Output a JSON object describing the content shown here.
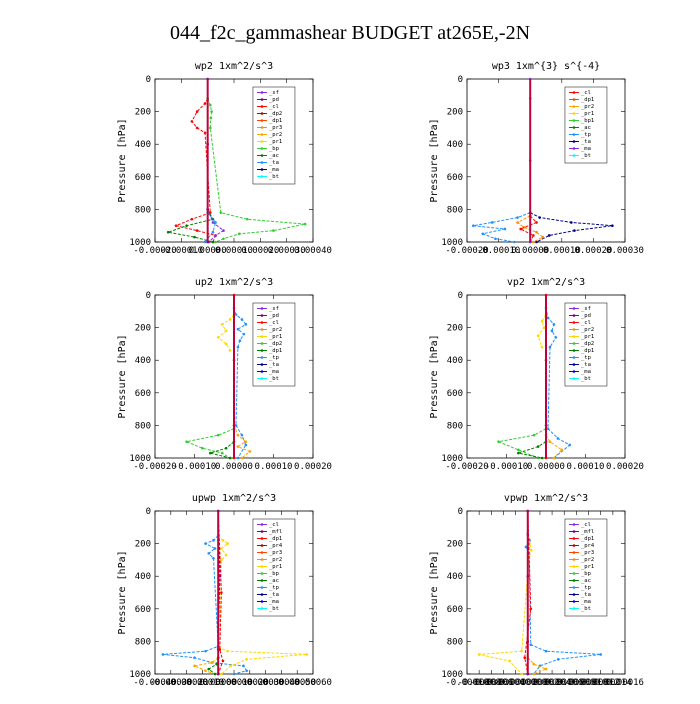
{
  "title": "044_f2c_gammashear  BUDGET at265E,-2N",
  "chart_data": [
    {
      "type": "line",
      "title": "wp2  1xm^2/s^3",
      "ylabel": "Pressure [hPa]",
      "ylim": [
        1000,
        0
      ],
      "yticks": [
        "0",
        "200",
        "400",
        "600",
        "800",
        "1000"
      ],
      "xlim": [
        -0.0002,
        0.0004
      ],
      "xticks": [
        "-0.00020",
        "-0.00010",
        "0.00000",
        "0.00010",
        "0.00020",
        "0.00030",
        "0.00040"
      ],
      "legend": [
        "_sf",
        "_pd",
        "_cl",
        "_dp2",
        "_dp1",
        "_pr3",
        "_pr2",
        "_pr1",
        "_bp",
        "_ac",
        "_ta",
        "_ma",
        "_bt"
      ],
      "legend_colors": [
        "#8a2be2",
        "#800080",
        "#ff0000",
        "#c00000",
        "#ff4500",
        "#ff8c00",
        "#ffa500",
        "#ffd700",
        "#32cd32",
        "#008000",
        "#1e90ff",
        "#00008b",
        "#00ffff"
      ],
      "series": [
        {
          "color": "#ff0000",
          "x": [
            0,
            -1e-05,
            -4e-05,
            -6e-05,
            -4e-05,
            -1e-05,
            1e-05,
            -6e-05,
            -0.00012,
            -4e-05,
            3e-05,
            2e-05
          ],
          "p": [
            120,
            150,
            200,
            260,
            300,
            330,
            820,
            860,
            900,
            930,
            960,
            1000
          ]
        },
        {
          "color": "#32cd32",
          "x": [
            0,
            1e-05,
            1.5e-05,
            1.2e-05,
            1e-05,
            5e-05,
            0.00015,
            0.00037,
            0.00025,
            0.00012,
            6e-05,
            3e-05
          ],
          "p": [
            120,
            160,
            200,
            240,
            300,
            820,
            860,
            890,
            930,
            950,
            980,
            1000
          ]
        },
        {
          "color": "#008000",
          "x": [
            0,
            2e-05,
            -8e-05,
            -0.00015,
            -5e-05,
            2e-05
          ],
          "p": [
            800,
            860,
            900,
            940,
            970,
            1000
          ]
        },
        {
          "color": "#8a2be2",
          "x": [
            0,
            2e-05,
            6e-05,
            3e-05,
            5e-06
          ],
          "p": [
            800,
            880,
            930,
            960,
            1000
          ]
        },
        {
          "color": "#1e90ff",
          "x": [
            0,
            3e-05,
            2e-05,
            -1e-05
          ],
          "p": [
            820,
            880,
            940,
            1000
          ]
        },
        {
          "color": "#800080",
          "x": [
            0,
            0,
            0,
            0
          ],
          "p": [
            0,
            400,
            800,
            1000
          ]
        }
      ]
    },
    {
      "type": "line",
      "title": "wp3  1xm^{3} s^{-4}",
      "ylabel": "Pressure [hPa]",
      "ylim": [
        1000,
        0
      ],
      "yticks": [
        "0",
        "200",
        "400",
        "600",
        "800",
        "1000"
      ],
      "xlim": [
        -0.0002,
        0.0003
      ],
      "xticks": [
        "-0.00020",
        "-0.00010",
        "0.00000",
        "0.00010",
        "0.00020",
        "0.00030"
      ],
      "legend": [
        "_cl",
        "_dp1",
        "_pr2",
        "_pr1",
        "_bp1",
        "_ac",
        "_tp",
        "_ta",
        "_ma",
        "_bt"
      ],
      "legend_colors": [
        "#ff0000",
        "#ff4500",
        "#ffa500",
        "#ffd700",
        "#32cd32",
        "#008000",
        "#1e90ff",
        "#00008b",
        "#8a2be2",
        "#00ffff"
      ],
      "series": [
        {
          "color": "#1e90ff",
          "x": [
            0,
            -4e-05,
            -0.00012,
            -0.00018,
            -8e-05,
            -0.00015,
            -0.00011,
            -5e-05
          ],
          "p": [
            820,
            850,
            880,
            900,
            920,
            950,
            980,
            1000
          ]
        },
        {
          "color": "#00008b",
          "x": [
            0,
            3e-05,
            0.00013,
            0.00026,
            0.00014,
            6e-05,
            2e-05
          ],
          "p": [
            820,
            850,
            880,
            900,
            930,
            960,
            1000
          ]
        },
        {
          "color": "#ff8c00",
          "x": [
            0,
            -4e-05,
            -2e-05,
            2e-05,
            4e-05,
            1e-05
          ],
          "p": [
            840,
            880,
            910,
            940,
            970,
            1000
          ]
        },
        {
          "color": "#ff0000",
          "x": [
            0,
            2e-05,
            -3e-05,
            1e-05,
            0
          ],
          "p": [
            840,
            880,
            920,
            960,
            1000
          ]
        },
        {
          "color": "#8a2be2",
          "x": [
            0,
            0,
            0,
            0
          ],
          "p": [
            0,
            120,
            500,
            1000
          ]
        }
      ]
    },
    {
      "type": "line",
      "title": "up2  1xm^2/s^3",
      "ylabel": "Pressure [hPa]",
      "ylim": [
        1000,
        0
      ],
      "yticks": [
        "0",
        "200",
        "400",
        "600",
        "800",
        "1000"
      ],
      "xlim": [
        -0.0002,
        0.0002
      ],
      "xticks": [
        "-0.00020",
        "-0.00010",
        "0.00000",
        "0.00010",
        "0.00020"
      ],
      "legend": [
        "_sf",
        "_pd",
        "_cl",
        "_pr2",
        "_pr1",
        "_dp2",
        "_dp1",
        "_tp",
        "_ta",
        "_ma",
        "_bt"
      ],
      "legend_colors": [
        "#8a2be2",
        "#800080",
        "#ff0000",
        "#ff8c00",
        "#ffd700",
        "#32cd32",
        "#008000",
        "#1e90ff",
        "#00008b",
        "#0000ff",
        "#00ffff"
      ],
      "series": [
        {
          "color": "#1e90ff",
          "x": [
            0,
            5e-06,
            2e-05,
            3e-05,
            1e-05,
            2.5e-05,
            1.5e-05,
            1e-05,
            5e-06,
            2e-05,
            3e-05,
            1e-05
          ],
          "p": [
            80,
            120,
            150,
            180,
            210,
            240,
            280,
            320,
            800,
            860,
            920,
            1000
          ]
        },
        {
          "color": "#ffd700",
          "x": [
            0,
            -1e-05,
            -3e-05,
            -2e-05,
            -4e-05,
            -2e-05,
            -1e-05
          ],
          "p": [
            120,
            150,
            180,
            220,
            260,
            300,
            340
          ]
        },
        {
          "color": "#ffa500",
          "x": [
            0,
            1e-05,
            3e-05,
            1e-05,
            4e-05,
            2e-05
          ],
          "p": [
            800,
            860,
            900,
            930,
            960,
            1000
          ]
        },
        {
          "color": "#32cd32",
          "x": [
            0,
            -4e-05,
            -0.00012,
            -8e-05,
            -3e-05,
            -1e-05
          ],
          "p": [
            820,
            860,
            900,
            940,
            970,
            1000
          ]
        },
        {
          "color": "#008000",
          "x": [
            0,
            -2e-05,
            -6e-05,
            -1e-05
          ],
          "p": [
            900,
            940,
            970,
            1000
          ]
        },
        {
          "color": "#ff0000",
          "x": [
            0,
            0,
            0,
            0
          ],
          "p": [
            0,
            400,
            800,
            1000
          ]
        }
      ]
    },
    {
      "type": "line",
      "title": "vp2  1xm^2/s^3",
      "ylabel": "Pressure [hPa]",
      "ylim": [
        1000,
        0
      ],
      "yticks": [
        "0",
        "200",
        "400",
        "600",
        "800",
        "1000"
      ],
      "xlim": [
        -0.0002,
        0.0002
      ],
      "xticks": [
        "-0.00020",
        "-0.00010",
        "0.00000",
        "0.00010",
        "0.00020"
      ],
      "legend": [
        "_sf",
        "_pd",
        "_cl",
        "_pr2",
        "_pr1",
        "_dp2",
        "_dp1",
        "_tp",
        "_ta",
        "_ma",
        "_bt"
      ],
      "legend_colors": [
        "#8a2be2",
        "#800080",
        "#ff0000",
        "#ff8c00",
        "#ffd700",
        "#32cd32",
        "#008000",
        "#1e90ff",
        "#00008b",
        "#0000ff",
        "#00ffff"
      ],
      "series": [
        {
          "color": "#1e90ff",
          "x": [
            0,
            5e-06,
            2e-05,
            1.5e-05,
            2.5e-05,
            1e-05,
            5e-06,
            3e-05,
            6e-05,
            2e-05
          ],
          "p": [
            80,
            140,
            180,
            220,
            260,
            320,
            820,
            880,
            920,
            1000
          ]
        },
        {
          "color": "#ffd700",
          "x": [
            0,
            -1e-05,
            -5e-06,
            -2e-05,
            -1e-05
          ],
          "p": [
            120,
            160,
            200,
            250,
            320
          ]
        },
        {
          "color": "#32cd32",
          "x": [
            0,
            -3e-05,
            -0.00012,
            -7e-05,
            -2e-05
          ],
          "p": [
            820,
            860,
            900,
            950,
            1000
          ]
        },
        {
          "color": "#008000",
          "x": [
            0,
            -2e-05,
            -7e-05,
            -1e-05
          ],
          "p": [
            900,
            930,
            970,
            1000
          ]
        },
        {
          "color": "#ffa500",
          "x": [
            0,
            1e-05,
            4e-05,
            2e-05
          ],
          "p": [
            860,
            900,
            950,
            1000
          ]
        },
        {
          "color": "#ff0000",
          "x": [
            0,
            0,
            0,
            0
          ],
          "p": [
            0,
            400,
            800,
            1000
          ]
        }
      ]
    },
    {
      "type": "line",
      "title": "upwp  1xm^2/s^3",
      "ylabel": "Pressure [hPa]",
      "ylim": [
        1000,
        0
      ],
      "yticks": [
        "0",
        "200",
        "400",
        "600",
        "800",
        "1000"
      ],
      "xlim": [
        -0.0004,
        0.0006
      ],
      "xticks": [
        "-0.00040",
        "-0.00030",
        "-0.00020",
        "-0.00010",
        "0.00000",
        "0.00010",
        "0.00020",
        "0.00030",
        "0.00040",
        "0.00050",
        "0.00060"
      ],
      "legend": [
        "_cl",
        "_mfl",
        "_dp1",
        "_pr4",
        "_pr3",
        "_pr2",
        "_pr1",
        "_bp",
        "_ac",
        "_tp",
        "_ta",
        "_ma",
        "_bt"
      ],
      "legend_colors": [
        "#8a2be2",
        "#800080",
        "#ff0000",
        "#c00000",
        "#ff4500",
        "#ff8c00",
        "#ffd700",
        "#32cd32",
        "#008000",
        "#1e90ff",
        "#00008b",
        "#0000ff",
        "#00ffff"
      ],
      "series": [
        {
          "color": "#1e90ff",
          "x": [
            0,
            -3e-05,
            -8e-05,
            -2e-05,
            -6e-05,
            -3e-05,
            0,
            -8e-05,
            -0.00035,
            -0.00015,
            -4e-05,
            0.00016,
            0.00018,
            0.0001
          ],
          "p": [
            150,
            180,
            200,
            230,
            260,
            290,
            830,
            860,
            880,
            900,
            930,
            950,
            980,
            1000
          ]
        },
        {
          "color": "#ffd700",
          "x": [
            0,
            3e-05,
            6e-05,
            2e-05,
            5e-05,
            2e-05,
            1e-05,
            6e-05,
            0.00056,
            0.00018,
            8e-05,
            2e-05
          ],
          "p": [
            150,
            180,
            200,
            230,
            270,
            300,
            840,
            860,
            880,
            910,
            950,
            1000
          ]
        },
        {
          "color": "#ffa500",
          "x": [
            0,
            -4e-05,
            -0.00015,
            -8e-05,
            -2e-05
          ],
          "p": [
            900,
            930,
            950,
            980,
            1000
          ]
        },
        {
          "color": "#008000",
          "x": [
            0,
            -1e-05,
            -6e-05,
            -2e-05
          ],
          "p": [
            900,
            940,
            970,
            1000
          ]
        },
        {
          "color": "#ff0000",
          "x": [
            0,
            2e-05,
            1e-05,
            3e-05,
            0
          ],
          "p": [
            0,
            500,
            850,
            920,
            1000
          ]
        },
        {
          "color": "#800080",
          "x": [
            0,
            1e-05,
            0,
            0
          ],
          "p": [
            0,
            400,
            850,
            1000
          ]
        }
      ]
    },
    {
      "type": "line",
      "title": "vpwp  1xm^2/s^3",
      "ylabel": "Pressure [hPa]",
      "ylim": [
        1000,
        0
      ],
      "yticks": [
        "0",
        "200",
        "400",
        "600",
        "800",
        "1000"
      ],
      "xlim": [
        -0.0001,
        0.00016
      ],
      "xticks": [
        "-0.00010",
        "-0.00008",
        "-0.00006",
        "-0.00004",
        "-0.00002",
        "0.00000",
        "0.00002",
        "0.00004",
        "0.00006",
        "0.00008",
        "0.00010",
        "0.00012",
        "0.00014",
        "0.00016"
      ],
      "legend": [
        "_cl",
        "_mfl",
        "_dp1",
        "_pr4",
        "_pr3",
        "_pr2",
        "_pr1",
        "_bp",
        "_ac",
        "_tp",
        "_ta",
        "_ma",
        "_bt"
      ],
      "legend_colors": [
        "#8a2be2",
        "#800080",
        "#ff0000",
        "#c00000",
        "#ff4500",
        "#ff8c00",
        "#ffd700",
        "#32cd32",
        "#008000",
        "#1e90ff",
        "#00008b",
        "#0000ff",
        "#00ffff"
      ],
      "series": [
        {
          "color": "#1e90ff",
          "x": [
            0,
            3e-06,
            -3e-06,
            2e-06,
            5e-06,
            3e-05,
            0.00012,
            5e-05,
            2e-05,
            1e-05
          ],
          "p": [
            140,
            180,
            220,
            260,
            820,
            860,
            880,
            910,
            950,
            1000
          ]
        },
        {
          "color": "#ffd700",
          "x": [
            0,
            3e-06,
            6e-06,
            2e-06,
            -1e-05,
            -8e-05,
            -3e-05,
            -1e-05
          ],
          "p": [
            150,
            200,
            240,
            280,
            860,
            880,
            920,
            1000
          ]
        },
        {
          "color": "#ffa500",
          "x": [
            0,
            1e-05,
            3e-05,
            1e-05
          ],
          "p": [
            900,
            940,
            970,
            1000
          ]
        },
        {
          "color": "#ff0000",
          "x": [
            0,
            5e-06,
            -5e-06,
            0
          ],
          "p": [
            0,
            600,
            900,
            1000
          ]
        },
        {
          "color": "#800080",
          "x": [
            0,
            0,
            0,
            0
          ],
          "p": [
            0,
            400,
            800,
            1000
          ]
        }
      ]
    }
  ]
}
